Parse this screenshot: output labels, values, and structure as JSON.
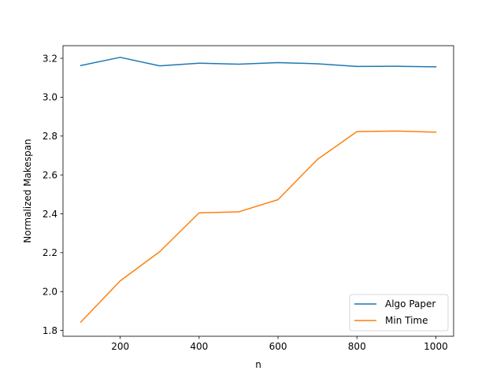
{
  "chart_data": {
    "type": "line",
    "title": "",
    "xlabel": "n",
    "ylabel": "Normalized Makespan",
    "x": [
      100,
      200,
      300,
      400,
      500,
      600,
      700,
      800,
      900,
      1000
    ],
    "xlim": [
      55,
      1045
    ],
    "ylim": [
      1.77,
      3.265
    ],
    "xticks": [
      200,
      400,
      600,
      800,
      1000
    ],
    "yticks": [
      1.8,
      2.0,
      2.2,
      2.4,
      2.6,
      2.8,
      3.0,
      3.2
    ],
    "grid": false,
    "legend_position": "lower-right",
    "series": [
      {
        "name": "Algo Paper",
        "color": "#1f77b4",
        "values": [
          3.163,
          3.205,
          3.161,
          3.175,
          3.17,
          3.178,
          3.172,
          3.158,
          3.159,
          3.156
        ]
      },
      {
        "name": "Min Time",
        "color": "#ff7f0e",
        "values": [
          1.843,
          2.055,
          2.205,
          2.405,
          2.41,
          2.473,
          2.68,
          2.823,
          2.826,
          2.82
        ]
      }
    ]
  }
}
